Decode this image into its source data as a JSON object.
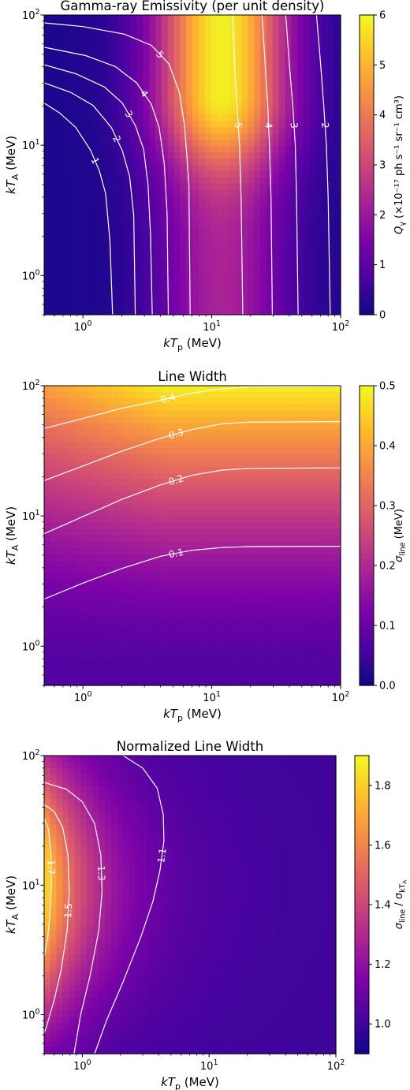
{
  "chart_data": [
    {
      "type": "heatmap",
      "title": "Gamma-ray Emissivity (per unit density)",
      "xlabel_base": "kT",
      "xlabel_sub": "p",
      "xlabel_unit": " (MeV)",
      "ylabel_base": "kT",
      "ylabel_sub": "A",
      "ylabel_unit": " (MeV)",
      "x_scale": "log",
      "y_scale": "log",
      "xlim": [
        0.5,
        100
      ],
      "ylim": [
        0.5,
        100
      ],
      "x_ticks": [
        {
          "value": 1,
          "base": "10",
          "exp": "0"
        },
        {
          "value": 10,
          "base": "10",
          "exp": "1"
        },
        {
          "value": 100,
          "base": "10",
          "exp": "2"
        }
      ],
      "y_ticks": [
        {
          "value": 1,
          "base": "10",
          "exp": "0"
        },
        {
          "value": 10,
          "base": "10",
          "exp": "1"
        },
        {
          "value": 100,
          "base": "10",
          "exp": "2"
        }
      ],
      "colormap": "plasma",
      "colorbar_range": [
        0,
        6
      ],
      "colorbar_ticks": [
        "0",
        "1",
        "2",
        "3",
        "4",
        "5",
        "6"
      ],
      "colorbar_label_base": "Q",
      "colorbar_label_sub": "γ",
      "colorbar_label_unit": " (×10⁻¹⁷ ph s⁻¹ sr⁻¹ cm³)",
      "contours": [
        {
          "level": "1",
          "points": [
            [
              0.5,
              21.1
            ],
            [
              0.66,
              17.7
            ],
            [
              0.88,
              13.7
            ],
            [
              1.15,
              9.1
            ],
            [
              1.34,
              6.35
            ],
            [
              1.5,
              4.25
            ],
            [
              1.62,
              1.85
            ],
            [
              1.7,
              0.5
            ]
          ]
        },
        {
          "level": "2",
          "points": [
            [
              0.5,
              30.1
            ],
            [
              0.8,
              25.5
            ],
            [
              1.2,
              20.2
            ],
            [
              1.66,
              13.7
            ],
            [
              2.02,
              9.1
            ],
            [
              2.3,
              5.8
            ],
            [
              2.48,
              2.9
            ],
            [
              2.55,
              0.5
            ]
          ]
        },
        {
          "level": "3",
          "points": [
            [
              0.5,
              41.5
            ],
            [
              0.88,
              35.4
            ],
            [
              1.47,
              28.0
            ],
            [
              2.02,
              21.1
            ],
            [
              2.55,
              14.2
            ],
            [
              2.96,
              9.3
            ],
            [
              3.2,
              5.0
            ],
            [
              3.35,
              2.0
            ],
            [
              3.45,
              0.5
            ]
          ]
        },
        {
          "level": "4",
          "points": [
            [
              0.5,
              56.5
            ],
            [
              1.05,
              48.8
            ],
            [
              1.79,
              40.1
            ],
            [
              2.61,
              30.1
            ],
            [
              3.4,
              20.6
            ],
            [
              3.9,
              13.7
            ],
            [
              4.28,
              7.2
            ],
            [
              4.5,
              3.0
            ],
            [
              4.6,
              0.5
            ]
          ]
        },
        {
          "level": "5",
          "points": [
            [
              0.5,
              87.0
            ],
            [
              1.0,
              81.5
            ],
            [
              2.1,
              71.3
            ],
            [
              3.4,
              58.5
            ],
            [
              4.65,
              42.1
            ],
            [
              5.6,
              25.5
            ],
            [
              6.15,
              14.2
            ],
            [
              6.65,
              5.0
            ],
            [
              6.8,
              0.5
            ]
          ]
        },
        {
          "level": "5",
          "points": [
            [
              14.5,
              100
            ],
            [
              15.0,
              43.1
            ],
            [
              15.7,
              20.2
            ],
            [
              16.4,
              10.0
            ],
            [
              16.9,
              4.0
            ],
            [
              17.4,
              0.5
            ]
          ]
        },
        {
          "level": "4",
          "points": [
            [
              24.5,
              100
            ],
            [
              26.0,
              41.5
            ],
            [
              27.2,
              20.2
            ],
            [
              28.0,
              10.0
            ],
            [
              28.8,
              4.0
            ],
            [
              29.5,
              0.5
            ]
          ]
        },
        {
          "level": "3",
          "points": [
            [
              37.5,
              100
            ],
            [
              40.0,
              41.5
            ],
            [
              42.5,
              20.2
            ],
            [
              44.5,
              10.0
            ],
            [
              45.5,
              4.0
            ],
            [
              46.8,
              0.5
            ]
          ]
        },
        {
          "level": "2",
          "points": [
            [
              65.0,
              100
            ],
            [
              70.0,
              41.5
            ],
            [
              74.0,
              20.2
            ],
            [
              77.5,
              10.0
            ],
            [
              80.0,
              4.0
            ],
            [
              83.0,
              0.5
            ]
          ]
        }
      ]
    },
    {
      "type": "heatmap",
      "title": "Line Width",
      "xlabel_base": "kT",
      "xlabel_sub": "p",
      "xlabel_unit": " (MeV)",
      "ylabel_base": "kT",
      "ylabel_sub": "A",
      "ylabel_unit": " (MeV)",
      "x_scale": "log",
      "y_scale": "log",
      "xlim": [
        0.5,
        100
      ],
      "ylim": [
        0.5,
        100
      ],
      "x_ticks": [
        {
          "value": 1,
          "base": "10",
          "exp": "0"
        },
        {
          "value": 10,
          "base": "10",
          "exp": "1"
        },
        {
          "value": 100,
          "base": "10",
          "exp": "2"
        }
      ],
      "y_ticks": [
        {
          "value": 1,
          "base": "10",
          "exp": "0"
        },
        {
          "value": 10,
          "base": "10",
          "exp": "1"
        },
        {
          "value": 100,
          "base": "10",
          "exp": "2"
        }
      ],
      "colormap": "plasma",
      "colorbar_range": [
        0,
        0.5
      ],
      "colorbar_ticks": [
        "0.0",
        "0.1",
        "0.2",
        "0.3",
        "0.4",
        "0.5"
      ],
      "colorbar_label_base": "σ",
      "colorbar_label_sub": "line",
      "colorbar_label_unit": " (MeV)",
      "contours": [
        {
          "level": "0.4",
          "points": [
            [
              0.5,
              47.0
            ],
            [
              1.0,
              56.0
            ],
            [
              2.0,
              67.0
            ],
            [
              3.5,
              75.0
            ],
            [
              6.0,
              85.0
            ],
            [
              10.0,
              93.0
            ],
            [
              20.0,
              98.0
            ],
            [
              100.0,
              99.0
            ]
          ]
        },
        {
          "level": "0.3",
          "points": [
            [
              0.5,
              18.7
            ],
            [
              1.0,
              24.2
            ],
            [
              2.0,
              31.4
            ],
            [
              4.0,
              39.5
            ],
            [
              7.0,
              46.0
            ],
            [
              12.0,
              51.0
            ],
            [
              20.0,
              52.5
            ],
            [
              100.0,
              53.0
            ]
          ]
        },
        {
          "level": "0.2",
          "points": [
            [
              0.5,
              7.3
            ],
            [
              1.0,
              9.9
            ],
            [
              2.0,
              13.4
            ],
            [
              4.0,
              17.3
            ],
            [
              7.0,
              20.5
            ],
            [
              12.0,
              22.5
            ],
            [
              20.0,
              23.2
            ],
            [
              100.0,
              23.4
            ]
          ]
        },
        {
          "level": "0.1",
          "points": [
            [
              0.5,
              2.3
            ],
            [
              1.0,
              3.05
            ],
            [
              2.0,
              3.95
            ],
            [
              4.0,
              4.9
            ],
            [
              7.0,
              5.45
            ],
            [
              12.0,
              5.72
            ],
            [
              20.0,
              5.82
            ],
            [
              100.0,
              5.85
            ]
          ]
        }
      ]
    },
    {
      "type": "heatmap",
      "title": "Normalized Line Width",
      "xlabel_base": "kT",
      "xlabel_sub": "p",
      "xlabel_unit": " (MeV)",
      "ylabel_base": "kT",
      "ylabel_sub": "A",
      "ylabel_unit": " (MeV)",
      "x_scale": "log",
      "y_scale": "log",
      "xlim": [
        0.5,
        100
      ],
      "ylim": [
        0.5,
        100
      ],
      "x_ticks": [
        {
          "value": 1,
          "base": "10",
          "exp": "0"
        },
        {
          "value": 10,
          "base": "10",
          "exp": "1"
        },
        {
          "value": 100,
          "base": "10",
          "exp": "2"
        }
      ],
      "y_ticks": [
        {
          "value": 1,
          "base": "10",
          "exp": "0"
        },
        {
          "value": 10,
          "base": "10",
          "exp": "1"
        },
        {
          "value": 100,
          "base": "10",
          "exp": "2"
        }
      ],
      "colormap": "plasma",
      "colorbar_range": [
        0.9,
        1.9
      ],
      "colorbar_ticks": [
        "1.0",
        "1.2",
        "1.4",
        "1.6",
        "1.8"
      ],
      "colorbar_label_base": "σ",
      "colorbar_label_sub": "line",
      "colorbar_label_mid": " / σ",
      "colorbar_label_sub2": "kT",
      "colorbar_label_sub3": "A",
      "contours": [
        {
          "level": "1.7",
          "points": [
            [
              0.5,
              33.0
            ],
            [
              0.54,
              27.0
            ],
            [
              0.565,
              18.0
            ],
            [
              0.57,
              10.5
            ],
            [
              0.555,
              6.0
            ],
            [
              0.535,
              4.0
            ],
            [
              0.5,
              2.8
            ]
          ]
        },
        {
          "level": "1.5",
          "points": [
            [
              0.5,
              42.0
            ],
            [
              0.6,
              37.0
            ],
            [
              0.7,
              28.0
            ],
            [
              0.77,
              17.0
            ],
            [
              0.79,
              9.0
            ],
            [
              0.76,
              4.5
            ],
            [
              0.68,
              2.2
            ],
            [
              0.6,
              1.3
            ],
            [
              0.52,
              0.8
            ],
            [
              0.5,
              0.72
            ]
          ]
        },
        {
          "level": "1.3",
          "points": [
            [
              0.5,
              62.0
            ],
            [
              0.75,
              55.0
            ],
            [
              1.0,
              44.0
            ],
            [
              1.25,
              30.0
            ],
            [
              1.4,
              17.0
            ],
            [
              1.43,
              9.0
            ],
            [
              1.35,
              4.5
            ],
            [
              1.15,
              2.0
            ],
            [
              0.97,
              1.0
            ],
            [
              0.86,
              0.5
            ]
          ]
        },
        {
          "level": "1.1",
          "points": [
            [
              2.1,
              100.0
            ],
            [
              3.0,
              80.0
            ],
            [
              3.9,
              56.0
            ],
            [
              4.35,
              35.0
            ],
            [
              4.4,
              22.0
            ],
            [
              4.1,
              13.0
            ],
            [
              3.6,
              7.5
            ],
            [
              2.9,
              4.0
            ],
            [
              2.1,
              1.8
            ],
            [
              1.55,
              0.9
            ],
            [
              1.25,
              0.5
            ]
          ]
        }
      ]
    }
  ]
}
